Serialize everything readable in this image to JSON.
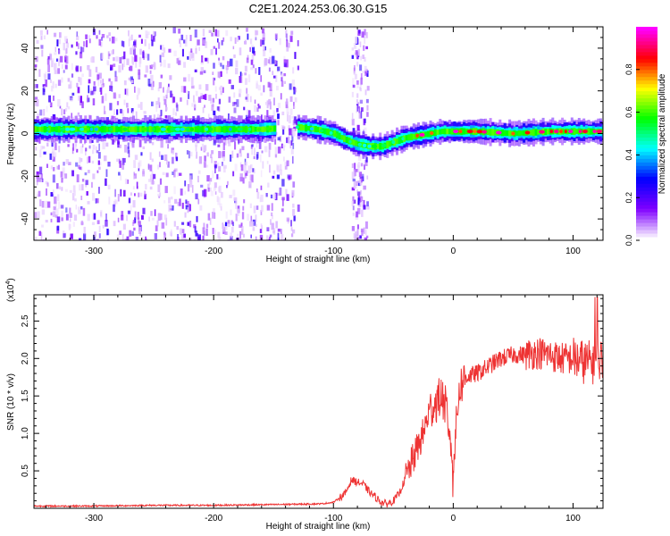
{
  "figure": {
    "title": "C2E1.2024.253.06.30.G15"
  },
  "chart_data": [
    {
      "type": "heatmap",
      "xlabel": "Height of straight line (km)",
      "ylabel": "Frequency (Hz)",
      "xlim": [
        -350,
        125
      ],
      "ylim": [
        -50,
        50
      ],
      "xticks": [
        -300,
        -200,
        -100,
        0,
        100
      ],
      "yticks": [
        -40,
        -20,
        0,
        20,
        40
      ],
      "colorbar": {
        "label": "Normalized spectral amplitude",
        "range": [
          0,
          1
        ],
        "ticks": [
          "0.0",
          "0.2",
          "0.4",
          "0.6",
          "0.8"
        ],
        "colors": [
          "#ffffff",
          "#7f00ff",
          "#0000ff",
          "#00ffff",
          "#00ff00",
          "#ffff00",
          "#ff0000",
          "#ff00ff"
        ]
      },
      "ridge": {
        "x": [
          -350,
          -300,
          -250,
          -200,
          -160,
          -130,
          -115,
          -100,
          -90,
          -80,
          -70,
          -60,
          -50,
          -40,
          -30,
          -20,
          -10,
          0,
          20,
          50,
          80,
          100,
          125
        ],
        "y": [
          2,
          2,
          2,
          2,
          2,
          3,
          2,
          0,
          -3,
          -5,
          -6,
          -6,
          -4,
          -2,
          -1,
          0,
          1,
          1,
          1,
          0,
          1,
          1,
          1
        ]
      },
      "noise_regions": [
        {
          "x": [
            -350,
            -130
          ],
          "density": "high"
        },
        {
          "x": [
            -85,
            -72
          ],
          "density": "medium"
        }
      ]
    },
    {
      "type": "line",
      "xlabel": "Height of straight line (km)",
      "ylabel": "SNR (10 * v/v)",
      "multiplier_label": "(x10",
      "multiplier_exp": "4",
      "xlim": [
        -350,
        125
      ],
      "ylim": [
        0,
        2.85
      ],
      "xticks": [
        -300,
        -200,
        -100,
        0,
        100
      ],
      "yticks": [
        "0.5",
        "1.0",
        "1.5",
        "2.0",
        "2.5"
      ],
      "color": "#ee3333",
      "series": [
        {
          "x": [
            -350,
            -300,
            -250,
            -200,
            -150,
            -110,
            -100,
            -90,
            -85,
            -80,
            -75,
            -70,
            -65,
            -60,
            -55,
            -50,
            -45,
            -40,
            -35,
            -30,
            -25,
            -20,
            -15,
            -10,
            -5,
            0,
            5,
            10,
            20,
            30,
            40,
            50,
            60,
            70,
            80,
            90,
            100,
            110,
            120,
            125
          ],
          "y": [
            0.03,
            0.03,
            0.04,
            0.04,
            0.05,
            0.06,
            0.08,
            0.2,
            0.38,
            0.35,
            0.32,
            0.22,
            0.15,
            0.08,
            0.06,
            0.1,
            0.2,
            0.4,
            0.6,
            0.8,
            1.0,
            1.3,
            1.4,
            1.5,
            1.3,
            0.6,
            1.6,
            1.75,
            1.8,
            1.9,
            2.0,
            2.05,
            2.05,
            2.08,
            2.05,
            2.0,
            2.0,
            1.95,
            1.95,
            2.0
          ]
        }
      ]
    }
  ]
}
